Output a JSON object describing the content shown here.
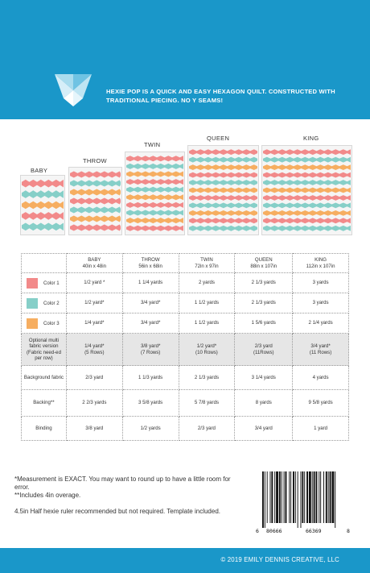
{
  "header": {
    "tagline": "HEXIE POP IS A QUICK AND EASY HEXAGON QUILT.  CONSTRUCTED WITH TRADITIONAL PIECING. NO Y SEAMS!",
    "color": "#1a97c9"
  },
  "colors": {
    "pink": "#f28a8a",
    "teal": "#86cfc8",
    "orange": "#f6ae61"
  },
  "quilts": [
    {
      "label": "BABY",
      "rows": 5
    },
    {
      "label": "THROW",
      "rows": 7
    },
    {
      "label": "TWIN",
      "rows": 10
    },
    {
      "label": "QUEEN",
      "rows": 11
    },
    {
      "label": "KING",
      "rows": 11
    }
  ],
  "table": {
    "sizes": [
      {
        "name": "BABY",
        "dim": "40in x 48in"
      },
      {
        "name": "THROW",
        "dim": "56in x 68in"
      },
      {
        "name": "TWIN",
        "dim": "72in x 97in"
      },
      {
        "name": "QUEEN",
        "dim": "88in x 107in"
      },
      {
        "name": "KING",
        "dim": "112in x 107in"
      }
    ],
    "rows": [
      {
        "label": "Color 1",
        "swatch": "#f28a8a",
        "values": [
          "1/2 yard *",
          "1 1/4 yards",
          "2 yards",
          "2 1/3 yards",
          "3 yards"
        ]
      },
      {
        "label": "Color 2",
        "swatch": "#86cfc8",
        "values": [
          "1/2 yard*",
          "3/4 yard*",
          "1 1/2 yards",
          "2 1/3 yards",
          "3 yards"
        ]
      },
      {
        "label": "Color 3",
        "swatch": "#f6ae61",
        "values": [
          "1/4 yard*",
          "3/4 yard*",
          "1 1/2 yards",
          "1 5/6 yards",
          "2 1/4 yards"
        ]
      },
      {
        "label": "Optional multi fabric version (Fabric need-ed per row)",
        "values": [
          "1/4 yard*",
          "3/8 yard*",
          "1/2 yard*",
          "2/3 yard",
          "3/4 yard*"
        ],
        "sub": [
          "(5 Rows)",
          "(7 Rows)",
          "(10 Rows)",
          "(11Rows)",
          "(11 Rows)"
        ]
      },
      {
        "label": "Background fabric",
        "values": [
          "2/3 yard",
          "1 1/3 yards",
          "2 1/3 yards",
          "3 1/4 yards",
          "4 yards"
        ]
      },
      {
        "label": "Backing**",
        "values": [
          "2 2/3 yards",
          "3 5/8 yards",
          "5 7/8 yards",
          "8 yards",
          "9 5/8 yards"
        ]
      },
      {
        "label": "Binding",
        "values": [
          "3/8 yard",
          "1/2 yards",
          "2/3 yard",
          "3/4 yard",
          "1 yard"
        ]
      }
    ]
  },
  "notes": {
    "line1": "*Measurement is EXACT.  You may want to round up to have a little room for error.",
    "line2": "**Includes 4in overage.",
    "line3": "4.5in Half hexie ruler recommended but not required. Template included."
  },
  "barcode": {
    "d1": "6",
    "d2": "80666",
    "d3": "66369",
    "d4": "8"
  },
  "footer": {
    "copyright": "© 2019 EMILY DENNIS CREATIVE, LLC"
  }
}
